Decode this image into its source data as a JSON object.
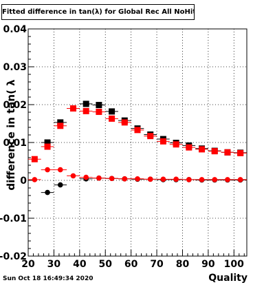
{
  "chart_data": {
    "type": "scatter",
    "title": "Fitted difference in tan(λ) for Global Rec All NoHits",
    "xlabel": "Quality",
    "ylabel": "difference in tan( λ",
    "xlim": [
      20,
      105
    ],
    "ylim": [
      -0.02,
      0.04
    ],
    "grid": true,
    "x_ticks": [
      "20",
      "30",
      "40",
      "50",
      "60",
      "70",
      "80",
      "90",
      "100"
    ],
    "y_ticks": [
      "-0.02",
      "-0.01",
      "0",
      "0.01",
      "0.02",
      "0.03",
      "0.04"
    ],
    "series": [
      {
        "color": "#000000",
        "marker": "square",
        "points": [
          {
            "x": 27.5,
            "y": 0.01
          },
          {
            "x": 32.5,
            "y": 0.0153
          },
          {
            "x": 37.5,
            "y": 0.019
          },
          {
            "x": 42.5,
            "y": 0.0202
          },
          {
            "x": 47.5,
            "y": 0.0199
          },
          {
            "x": 52.5,
            "y": 0.0182
          },
          {
            "x": 57.5,
            "y": 0.0158
          },
          {
            "x": 62.5,
            "y": 0.0137
          },
          {
            "x": 67.5,
            "y": 0.0121
          },
          {
            "x": 72.5,
            "y": 0.0109
          },
          {
            "x": 77.5,
            "y": 0.0099
          },
          {
            "x": 82.5,
            "y": 0.0092
          },
          {
            "x": 87.5,
            "y": 0.0084
          },
          {
            "x": 92.5,
            "y": 0.0078
          },
          {
            "x": 97.5,
            "y": 0.0074
          },
          {
            "x": 102.5,
            "y": 0.0073
          }
        ]
      },
      {
        "color": "#ff0000",
        "marker": "square",
        "points": [
          {
            "x": 22.5,
            "y": 0.0056
          },
          {
            "x": 27.5,
            "y": 0.0089
          },
          {
            "x": 32.5,
            "y": 0.0144
          },
          {
            "x": 37.5,
            "y": 0.019
          },
          {
            "x": 42.5,
            "y": 0.0183
          },
          {
            "x": 47.5,
            "y": 0.0181
          },
          {
            "x": 52.5,
            "y": 0.0163
          },
          {
            "x": 57.5,
            "y": 0.0153
          },
          {
            "x": 62.5,
            "y": 0.0133
          },
          {
            "x": 67.5,
            "y": 0.0117
          },
          {
            "x": 72.5,
            "y": 0.0103
          },
          {
            "x": 77.5,
            "y": 0.0095
          },
          {
            "x": 82.5,
            "y": 0.0087
          },
          {
            "x": 87.5,
            "y": 0.0082
          },
          {
            "x": 92.5,
            "y": 0.0077
          },
          {
            "x": 97.5,
            "y": 0.0074
          },
          {
            "x": 102.5,
            "y": 0.0072
          }
        ]
      },
      {
        "color": "#000000",
        "marker": "circle",
        "points": [
          {
            "x": 27.5,
            "y": -0.0032
          },
          {
            "x": 32.5,
            "y": -0.0012
          },
          {
            "x": 42.5,
            "y": 0.0004
          },
          {
            "x": 47.5,
            "y": 0.0006
          },
          {
            "x": 52.5,
            "y": 0.0005
          },
          {
            "x": 57.5,
            "y": 0.0004
          },
          {
            "x": 62.5,
            "y": 0.0003
          },
          {
            "x": 67.5,
            "y": 0.0003
          },
          {
            "x": 72.5,
            "y": 0.0002
          },
          {
            "x": 77.5,
            "y": 0.0002
          },
          {
            "x": 82.5,
            "y": 0.0002
          },
          {
            "x": 87.5,
            "y": 0.0001
          },
          {
            "x": 92.5,
            "y": 0.0001
          },
          {
            "x": 97.5,
            "y": 0.0001
          },
          {
            "x": 102.5,
            "y": 0.0001
          }
        ]
      },
      {
        "color": "#ff0000",
        "marker": "circle",
        "points": [
          {
            "x": 22.5,
            "y": 0.0002
          },
          {
            "x": 27.5,
            "y": 0.0028
          },
          {
            "x": 32.5,
            "y": 0.0028
          },
          {
            "x": 37.5,
            "y": 0.0012
          },
          {
            "x": 42.5,
            "y": 0.0008
          },
          {
            "x": 47.5,
            "y": 0.0006
          },
          {
            "x": 52.5,
            "y": 0.0005
          },
          {
            "x": 57.5,
            "y": 0.0004
          },
          {
            "x": 62.5,
            "y": 0.0004
          },
          {
            "x": 67.5,
            "y": 0.0003
          },
          {
            "x": 72.5,
            "y": 0.0003
          },
          {
            "x": 77.5,
            "y": 0.0003
          },
          {
            "x": 82.5,
            "y": 0.0002
          },
          {
            "x": 87.5,
            "y": 0.0002
          },
          {
            "x": 92.5,
            "y": 0.0002
          },
          {
            "x": 97.5,
            "y": 0.0002
          },
          {
            "x": 102.5,
            "y": 0.0002
          }
        ]
      }
    ]
  },
  "footer": {
    "timestamp": "Sun Oct 18 16:49:34 2020"
  }
}
